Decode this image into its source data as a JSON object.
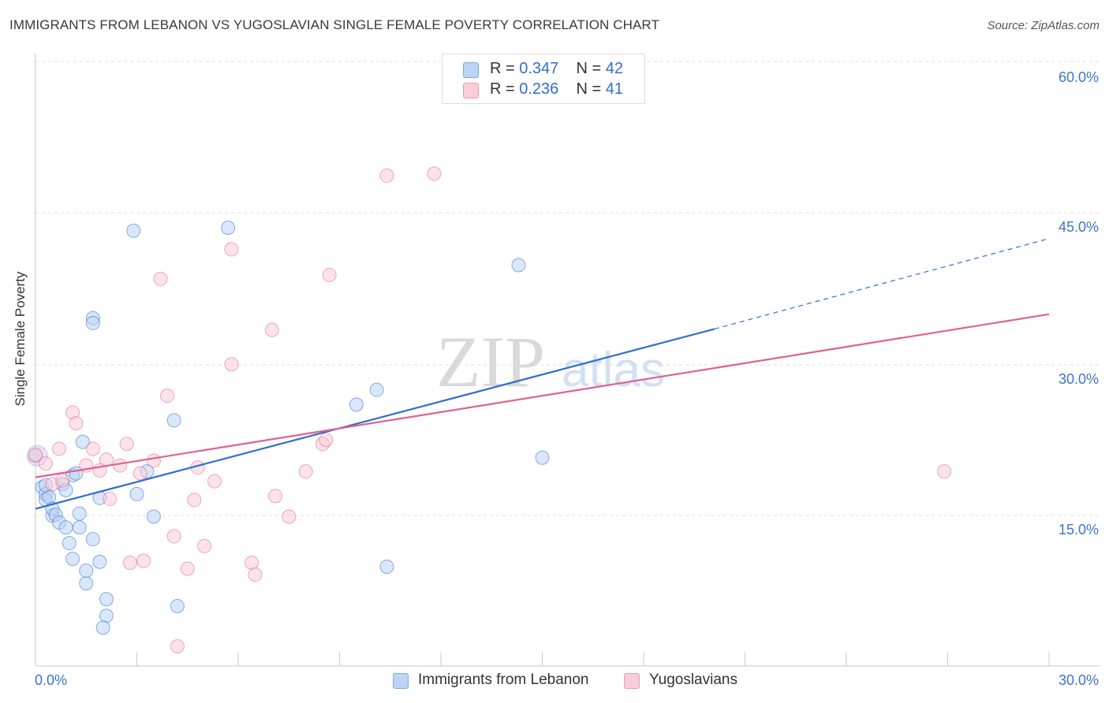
{
  "title": "IMMIGRANTS FROM LEBANON VS YUGOSLAVIAN SINGLE FEMALE POVERTY CORRELATION CHART",
  "source": "Source: ZipAtlas.com",
  "watermark": {
    "zip": "ZIP",
    "atlas": "atlas"
  },
  "legend": {
    "r_label": "R =",
    "n_label": "N =",
    "rows": [
      {
        "r": "0.347",
        "n": "42"
      },
      {
        "r": "0.236",
        "n": "41"
      }
    ]
  },
  "chart_data": {
    "type": "scatter",
    "title": "IMMIGRANTS FROM LEBANON VS YUGOSLAVIAN SINGLE FEMALE POVERTY CORRELATION CHART",
    "xlabel": "",
    "ylabel": "Single Female Poverty",
    "xlim": [
      0,
      30
    ],
    "ylim": [
      0,
      60
    ],
    "x_tick_labels": {
      "left": "0.0%",
      "right": "30.0%"
    },
    "y_ticks": [
      15,
      30,
      45,
      60
    ],
    "y_tick_labels": [
      "15.0%",
      "30.0%",
      "45.0%",
      "60.0%"
    ],
    "colors": {
      "blue": "#2f6ecb",
      "blue_fill": "#bcd4f5",
      "pink": "#e0608f",
      "pink_fill": "#f9ccd9"
    },
    "series": [
      {
        "name": "Immigrants from Lebanon",
        "color": "#2f6ecb",
        "fill": "#bcd4f5",
        "trend": {
          "x0": 0,
          "y0": 16.0,
          "x1": 20.1,
          "y1": 34.3,
          "dash_to_x": 30,
          "dash_to_y": 43.5
        },
        "points": [
          [
            0.0,
            21.4
          ],
          [
            0.2,
            18.2
          ],
          [
            0.3,
            17.5
          ],
          [
            0.3,
            16.9
          ],
          [
            0.4,
            17.2
          ],
          [
            0.5,
            15.3
          ],
          [
            0.5,
            16.0
          ],
          [
            0.6,
            15.4
          ],
          [
            0.7,
            14.6
          ],
          [
            0.8,
            18.5
          ],
          [
            0.9,
            17.9
          ],
          [
            0.9,
            14.1
          ],
          [
            1.0,
            12.5
          ],
          [
            1.1,
            19.4
          ],
          [
            1.1,
            10.9
          ],
          [
            1.2,
            19.6
          ],
          [
            1.3,
            15.5
          ],
          [
            1.3,
            14.1
          ],
          [
            1.4,
            22.8
          ],
          [
            1.5,
            8.4
          ],
          [
            1.5,
            9.7
          ],
          [
            1.7,
            12.9
          ],
          [
            1.7,
            35.4
          ],
          [
            1.7,
            34.9
          ],
          [
            1.9,
            17.1
          ],
          [
            1.9,
            10.6
          ],
          [
            2.1,
            6.8
          ],
          [
            2.1,
            5.1
          ],
          [
            2.0,
            3.9
          ],
          [
            3.0,
            17.5
          ],
          [
            2.9,
            44.3
          ],
          [
            3.3,
            19.8
          ],
          [
            3.5,
            15.2
          ],
          [
            4.1,
            25.0
          ],
          [
            4.2,
            6.1
          ],
          [
            5.7,
            44.6
          ],
          [
            9.5,
            26.6
          ],
          [
            10.1,
            28.1
          ],
          [
            10.4,
            10.1
          ],
          [
            14.3,
            40.8
          ],
          [
            15.0,
            21.2
          ],
          [
            0.3,
            18.4
          ]
        ]
      },
      {
        "name": "Yugoslavians",
        "color": "#e0608f",
        "fill": "#f9ccd9",
        "trend": {
          "x0": 0,
          "y0": 19.2,
          "x1": 30,
          "y1": 35.8
        },
        "points": [
          [
            0.0,
            21.5
          ],
          [
            0.3,
            20.6
          ],
          [
            0.5,
            18.5
          ],
          [
            0.7,
            22.1
          ],
          [
            0.8,
            18.9
          ],
          [
            1.1,
            25.8
          ],
          [
            1.2,
            24.7
          ],
          [
            1.5,
            20.4
          ],
          [
            1.7,
            22.1
          ],
          [
            1.9,
            19.9
          ],
          [
            2.1,
            21.0
          ],
          [
            2.2,
            17.0
          ],
          [
            2.5,
            20.4
          ],
          [
            2.7,
            22.6
          ],
          [
            2.8,
            10.5
          ],
          [
            3.1,
            19.6
          ],
          [
            3.2,
            10.7
          ],
          [
            3.5,
            20.9
          ],
          [
            3.7,
            39.4
          ],
          [
            3.9,
            27.5
          ],
          [
            4.1,
            13.2
          ],
          [
            4.2,
            2.0
          ],
          [
            4.5,
            9.9
          ],
          [
            4.7,
            16.9
          ],
          [
            4.8,
            20.2
          ],
          [
            5.0,
            12.2
          ],
          [
            5.3,
            18.8
          ],
          [
            5.8,
            30.7
          ],
          [
            5.8,
            42.4
          ],
          [
            6.4,
            10.5
          ],
          [
            6.5,
            9.3
          ],
          [
            7.0,
            34.2
          ],
          [
            7.1,
            17.3
          ],
          [
            7.5,
            15.2
          ],
          [
            8.0,
            19.8
          ],
          [
            8.5,
            22.6
          ],
          [
            8.6,
            23.0
          ],
          [
            8.7,
            39.8
          ],
          [
            10.4,
            49.9
          ],
          [
            11.8,
            50.1
          ],
          [
            26.9,
            19.8
          ]
        ]
      }
    ]
  }
}
